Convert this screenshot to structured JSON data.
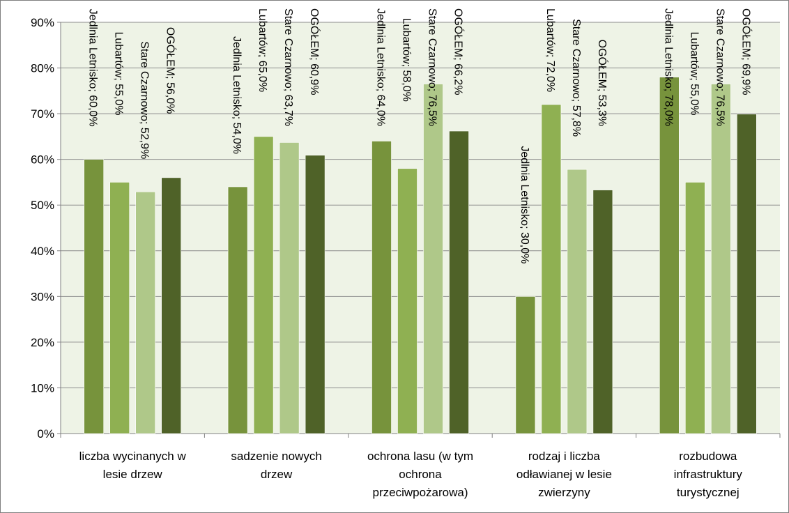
{
  "chart_data": {
    "type": "bar",
    "orientation": "vertical",
    "ylim": [
      0,
      90
    ],
    "y_unit": "%",
    "yticks": [
      "0%",
      "10%",
      "20%",
      "30%",
      "40%",
      "50%",
      "60%",
      "70%",
      "80%",
      "90%"
    ],
    "grid": true,
    "legend": "none",
    "categories": [
      [
        "liczba wycinanych w",
        "lesie drzew"
      ],
      [
        "sadzenie nowych",
        "drzew"
      ],
      [
        "ochrona lasu (w tym",
        "ochrona",
        "przeciwpożarowa)"
      ],
      [
        "rodzaj i liczba",
        "odławianej w lesie",
        "zwierzyny"
      ],
      [
        "rozbudowa",
        "infrastruktury",
        "turystycznej"
      ]
    ],
    "series": [
      {
        "name": "Jedlnia Letnisko",
        "color": "#77933c",
        "values": [
          60.0,
          54.0,
          64.0,
          30.0,
          78.0
        ],
        "labels": [
          "Jedlnia Letnisko; 60,0%",
          "Jedlnia Letnisko; 54,0%",
          "Jedlnia Letnisko; 64,0%",
          "Jedlnia Letnisko; 30,0%",
          "Jedlnia Letnisko; 78,0%"
        ]
      },
      {
        "name": "Lubartów",
        "color": "#8fb052",
        "values": [
          55.0,
          65.0,
          58.0,
          72.0,
          55.0
        ],
        "labels": [
          "Lubartów; 55,0%",
          "Lubartów; 65,0%",
          "Lubartów; 58,0%",
          "Lubartów; 72,0%",
          "Lubartów; 55,0%"
        ]
      },
      {
        "name": "Stare Czarnowo",
        "color": "#afc889",
        "values": [
          52.9,
          63.7,
          76.5,
          57.8,
          76.5
        ],
        "labels": [
          "Stare Czarnowo; 52,9%",
          "Stare Czarnowo; 63,7%",
          "Stare Czarnowo; 76,5%",
          "Stare Czarnowo; 57,8%",
          "Stare Czarnowo; 76,5%"
        ]
      },
      {
        "name": "OGÓŁEM",
        "color": "#4f6228",
        "values": [
          56.0,
          60.9,
          66.2,
          53.3,
          69.9
        ],
        "labels": [
          "OGÓŁEM; 56,0%",
          "OGÓŁEM; 60,9%",
          "OGÓŁEM; 66,2%",
          "OGÓŁEM; 53,3%",
          "OGÓŁEM; 69,9%"
        ]
      }
    ],
    "colors": {
      "plot_background": "#eef3e6",
      "gridline": "#8c8c8c",
      "axis": "#808080"
    }
  }
}
